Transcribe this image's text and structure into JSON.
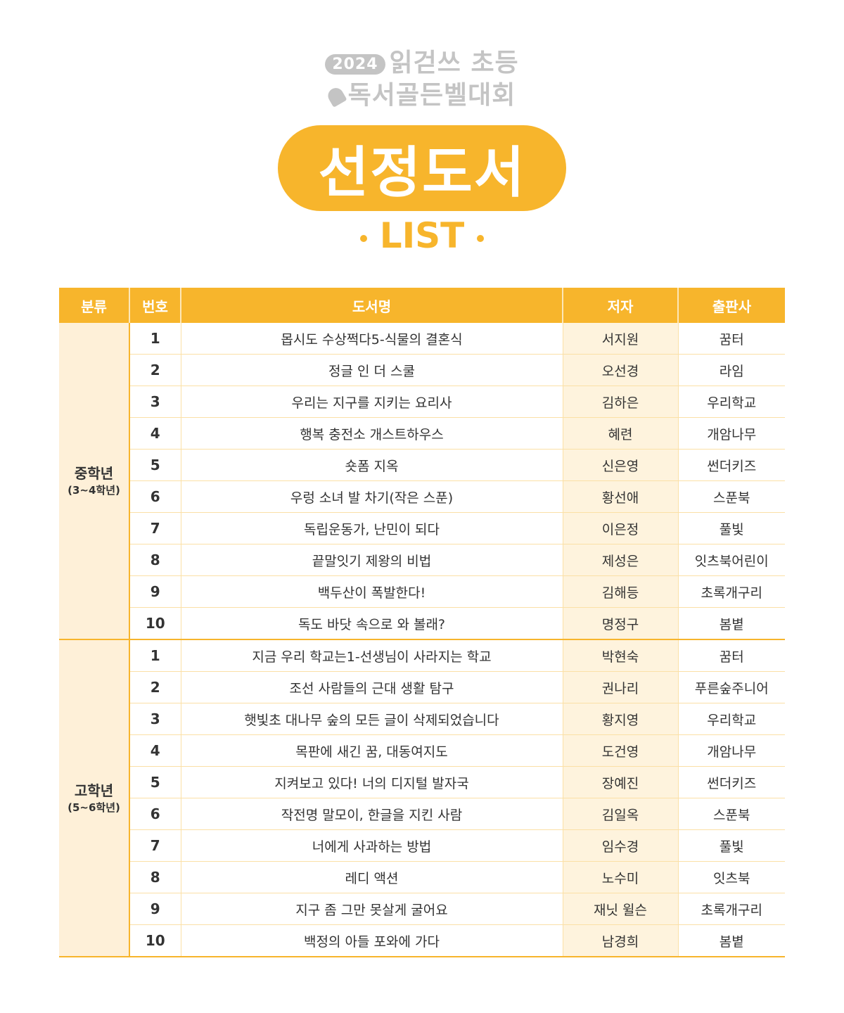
{
  "logo": {
    "year": "2024",
    "line1": "읽걷쓰 초등",
    "line2": "독서골든벨대회",
    "bell_icon": "bell-icon"
  },
  "banner": {
    "title": "선정도서",
    "subtitle": "LIST"
  },
  "colors": {
    "accent": "#f7b52c",
    "logo_gray": "#c4c4c4",
    "cream": "#fef3dd"
  },
  "table": {
    "headers": [
      "분류",
      "번호",
      "도서명",
      "저자",
      "출판사"
    ],
    "groups": [
      {
        "category": "중학년",
        "grades": "(3~4학년)",
        "rows": [
          {
            "no": "1",
            "title": "몹시도 수상쩍다5-식물의 결혼식",
            "author": "서지원",
            "publisher": "꿈터"
          },
          {
            "no": "2",
            "title": "정글 인 더 스쿨",
            "author": "오선경",
            "publisher": "라임"
          },
          {
            "no": "3",
            "title": "우리는 지구를 지키는 요리사",
            "author": "김하은",
            "publisher": "우리학교"
          },
          {
            "no": "4",
            "title": "행복 충전소 개스트하우스",
            "author": "혜련",
            "publisher": "개암나무"
          },
          {
            "no": "5",
            "title": "숏폼 지옥",
            "author": "신은영",
            "publisher": "썬더키즈"
          },
          {
            "no": "6",
            "title": "우렁 소녀 발 차기(작은 스푼)",
            "author": "황선애",
            "publisher": "스푼북"
          },
          {
            "no": "7",
            "title": "독립운동가, 난민이 되다",
            "author": "이은정",
            "publisher": "풀빛"
          },
          {
            "no": "8",
            "title": "끝말잇기 제왕의 비법",
            "author": "제성은",
            "publisher": "잇츠북어린이"
          },
          {
            "no": "9",
            "title": "백두산이 폭발한다!",
            "author": "김해등",
            "publisher": "초록개구리"
          },
          {
            "no": "10",
            "title": "독도 바닷 속으로 와 볼래?",
            "author": "명정구",
            "publisher": "봄볕"
          }
        ]
      },
      {
        "category": "고학년",
        "grades": "(5~6학년)",
        "rows": [
          {
            "no": "1",
            "title": "지금 우리 학교는1-선생님이 사라지는 학교",
            "author": "박현숙",
            "publisher": "꿈터"
          },
          {
            "no": "2",
            "title": "조선 사람들의 근대 생활 탐구",
            "author": "권나리",
            "publisher": "푸른숲주니어"
          },
          {
            "no": "3",
            "title": "햇빛초 대나무 숲의 모든 글이 삭제되었습니다",
            "author": "황지영",
            "publisher": "우리학교"
          },
          {
            "no": "4",
            "title": "목판에 새긴 꿈, 대동여지도",
            "author": "도건영",
            "publisher": "개암나무"
          },
          {
            "no": "5",
            "title": "지켜보고 있다! 너의 디지털 발자국",
            "author": "장예진",
            "publisher": "썬더키즈"
          },
          {
            "no": "6",
            "title": "작전명 말모이, 한글을 지킨 사람",
            "author": "김일옥",
            "publisher": "스푼북"
          },
          {
            "no": "7",
            "title": "너에게 사과하는 방법",
            "author": "임수경",
            "publisher": "풀빛"
          },
          {
            "no": "8",
            "title": "레디 액션",
            "author": "노수미",
            "publisher": "잇츠북"
          },
          {
            "no": "9",
            "title": "지구 좀 그만 못살게 굴어요",
            "author": "재닛 윌슨",
            "publisher": "초록개구리"
          },
          {
            "no": "10",
            "title": "백정의 아들 포와에 가다",
            "author": "남경희",
            "publisher": "봄볕"
          }
        ]
      }
    ]
  }
}
